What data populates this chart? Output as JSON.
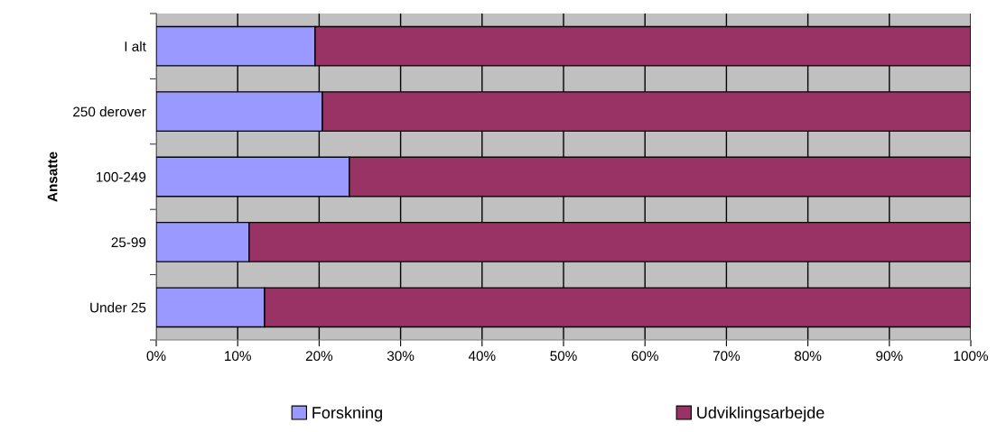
{
  "chart_data": {
    "type": "bar",
    "orientation": "horizontal",
    "stacked": true,
    "ylabel": "Ansatte",
    "categories": [
      "I alt",
      "250 derover",
      "100-249",
      "25-99",
      "Under 25"
    ],
    "series": [
      {
        "name": "Forskning",
        "color": "#9999ff",
        "values": [
          19.5,
          20.4,
          23.7,
          11.4,
          13.3
        ]
      },
      {
        "name": "Udviklingsarbejde",
        "color": "#993366",
        "values": [
          80.5,
          79.6,
          76.3,
          88.6,
          86.7
        ]
      }
    ],
    "xlim": [
      0,
      100
    ],
    "xticks": [
      {
        "value": 0,
        "label": "0%"
      },
      {
        "value": 10,
        "label": "10%"
      },
      {
        "value": 20,
        "label": "20%"
      },
      {
        "value": 30,
        "label": "30%"
      },
      {
        "value": 40,
        "label": "40%"
      },
      {
        "value": 50,
        "label": "50%"
      },
      {
        "value": 60,
        "label": "60%"
      },
      {
        "value": 70,
        "label": "70%"
      },
      {
        "value": 80,
        "label": "80%"
      },
      {
        "value": 90,
        "label": "90%"
      },
      {
        "value": 100,
        "label": "100%"
      }
    ],
    "grid": "x",
    "legend": "bottom"
  }
}
